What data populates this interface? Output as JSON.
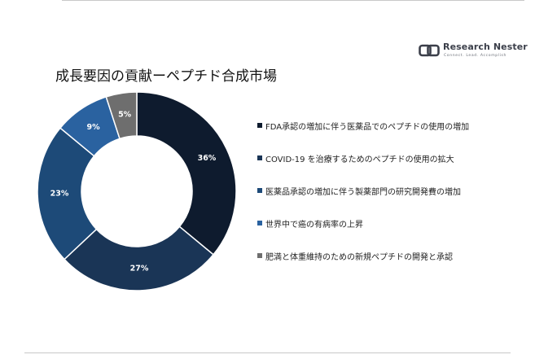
{
  "brand": {
    "name": "Research Nester",
    "tagline": "Connect. Lead. Accomplish"
  },
  "chart_data": {
    "type": "pie",
    "donut": true,
    "title": "成長要因の貢献ーペプチド合成市場",
    "legend_position": "right",
    "series": [
      {
        "name": "FDA承認の増加に伴う医薬品でのペプチドの使用の増加",
        "value": 36,
        "label": "36%",
        "color": "#0e1b2e"
      },
      {
        "name": "COVID-19 を治療するためのペプチドの使用の拡大",
        "value": 27,
        "label": "27%",
        "color": "#1a3556"
      },
      {
        "name": "医薬品承認の増加に伴う製薬部門の研究開発費の増加",
        "value": 23,
        "label": "23%",
        "color": "#1d4a78"
      },
      {
        "name": "世界中で癌の有病率の上昇",
        "value": 9,
        "label": "9%",
        "color": "#2a62a0"
      },
      {
        "name": "肥満と体重維持のための新規ペプチドの開発と承認",
        "value": 5,
        "label": "5%",
        "color": "#6e6e6e"
      }
    ]
  }
}
